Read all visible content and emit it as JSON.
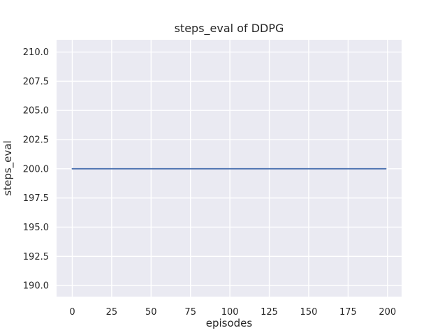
{
  "page": {
    "background_color": "#ffffff"
  },
  "chart_data": {
    "type": "line",
    "title": "steps_eval of DDPG",
    "xlabel": "episodes",
    "ylabel": "steps_eval",
    "xlim": [
      -9.95,
      208.95
    ],
    "ylim": [
      189.05,
      211.05
    ],
    "x_ticks": [
      0,
      25,
      50,
      75,
      100,
      125,
      150,
      175,
      200
    ],
    "x_tick_labels": [
      "0",
      "25",
      "50",
      "75",
      "100",
      "125",
      "150",
      "175",
      "200"
    ],
    "y_ticks": [
      190.0,
      192.5,
      195.0,
      197.5,
      200.0,
      202.5,
      205.0,
      207.5,
      210.0
    ],
    "y_tick_labels": [
      "190.0",
      "192.5",
      "195.0",
      "197.5",
      "200.0",
      "202.5",
      "205.0",
      "207.5",
      "210.0"
    ],
    "grid": true,
    "legend": "none",
    "style": {
      "figure_background": "#ffffff",
      "plot_background": "#eaeaf2",
      "grid_color": "#ffffff",
      "text_color": "#262626",
      "line_color": "#4c72b0",
      "line_width": 1.8
    },
    "series": [
      {
        "name": "steps_eval",
        "color": "#4c72b0",
        "x": [
          0,
          199
        ],
        "y": [
          200,
          200
        ]
      }
    ]
  }
}
